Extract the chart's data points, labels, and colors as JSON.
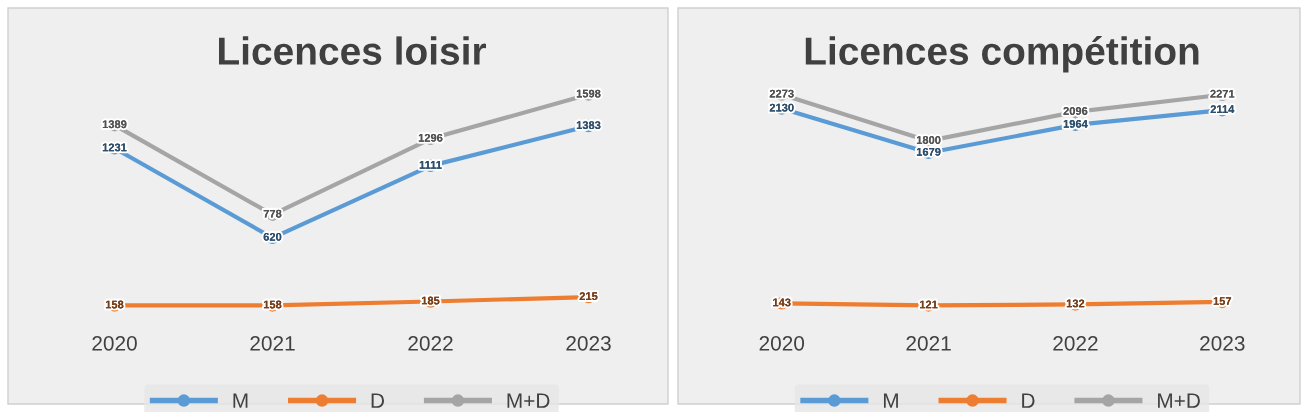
{
  "chart_data": [
    {
      "type": "line",
      "title": "Licences loisir",
      "categories": [
        "2020",
        "2021",
        "2022",
        "2023"
      ],
      "marker": "circle",
      "line_style": "solid",
      "data_labels": true,
      "legend": "bottom",
      "grid": false,
      "tick_labels": "x",
      "series": [
        {
          "name": "M",
          "color": "#5b9bd5",
          "values": [
            1231,
            620,
            1111,
            1383
          ]
        },
        {
          "name": "D",
          "color": "#ed7d31",
          "values": [
            158,
            158,
            185,
            215
          ]
        },
        {
          "name": "M+D",
          "color": "#a5a5a5",
          "values": [
            1389,
            778,
            1296,
            1598
          ]
        }
      ]
    },
    {
      "type": "line",
      "title": "Licences compétition",
      "categories": [
        "2020",
        "2021",
        "2022",
        "2023"
      ],
      "marker": "circle",
      "line_style": "solid",
      "data_labels": true,
      "legend": "bottom",
      "grid": false,
      "tick_labels": "x",
      "series": [
        {
          "name": "M",
          "color": "#5b9bd5",
          "values": [
            2130,
            1679,
            1964,
            2114
          ]
        },
        {
          "name": "D",
          "color": "#ed7d31",
          "values": [
            143,
            121,
            132,
            157
          ]
        },
        {
          "name": "M+D",
          "color": "#a5a5a5",
          "values": [
            2273,
            1800,
            2096,
            2271
          ]
        }
      ]
    }
  ]
}
